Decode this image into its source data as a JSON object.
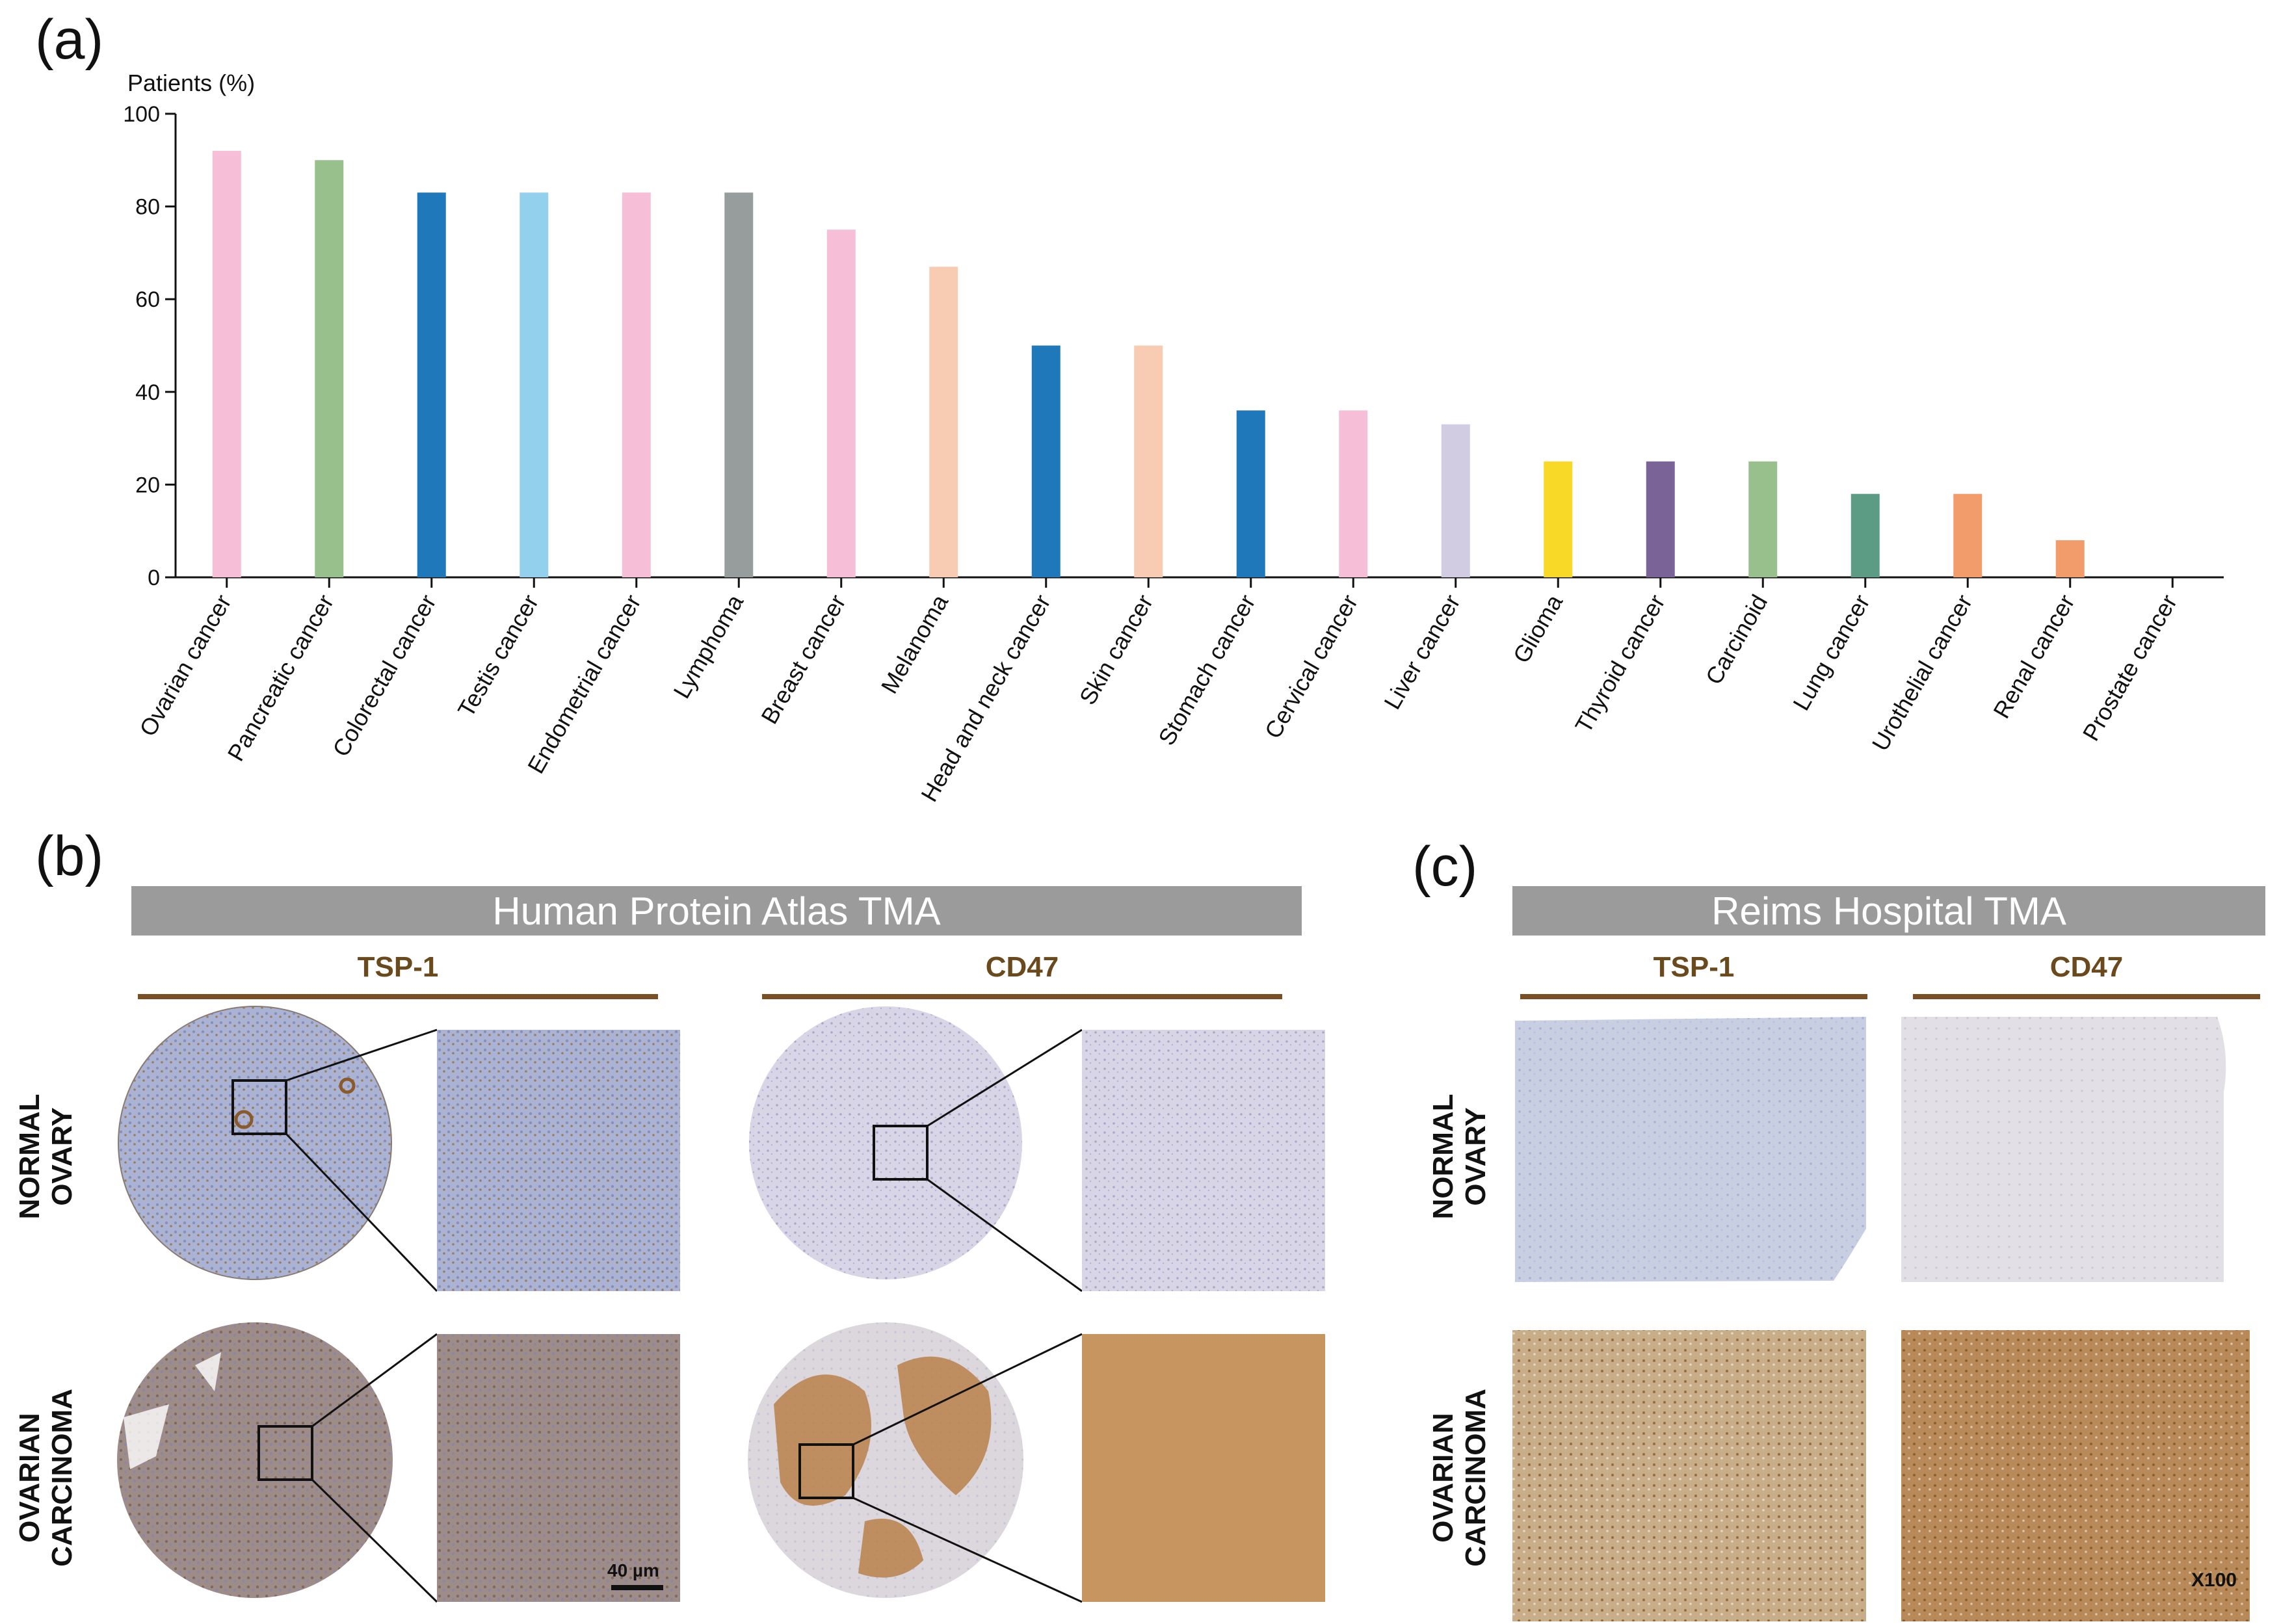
{
  "panels": {
    "a": "(a)",
    "b": "(b)",
    "c": "(c)"
  },
  "chart_data": {
    "type": "bar",
    "title": "",
    "ylabel": "Patients (%)",
    "xlabel": "",
    "ylim": [
      0,
      100
    ],
    "yticks": [
      "0",
      "20",
      "40",
      "60",
      "80",
      "100"
    ],
    "grid": false,
    "categories": [
      "Ovarian cancer",
      "Pancreatic cancer",
      "Colorectal cancer",
      "Testis cancer",
      "Endometrial cancer",
      "Lymphoma",
      "Breast cancer",
      "Melanoma",
      "Head and neck cancer",
      "Skin cancer",
      "Stomach cancer",
      "Cervical cancer",
      "Liver cancer",
      "Glioma",
      "Thyroid cancer",
      "Carcinoid",
      "Lung cancer",
      "Urothelial cancer",
      "Renal cancer",
      "Prostate cancer"
    ],
    "values": [
      92,
      90,
      83,
      83,
      83,
      83,
      75,
      67,
      50,
      50,
      36,
      36,
      33,
      25,
      25,
      25,
      18,
      18,
      8,
      0
    ],
    "colors": [
      "#f6bfd7",
      "#98c08d",
      "#1f78b9",
      "#93d0ee",
      "#f6bfd7",
      "#979d9c",
      "#f6bfd7",
      "#f8cbb3",
      "#1f78b9",
      "#f8cbb3",
      "#1f78b9",
      "#f6bfd7",
      "#d2cce3",
      "#f9d927",
      "#7a6397",
      "#98c08d",
      "#5c9c84",
      "#f39c6b",
      "#f39c6b",
      "#ffffff"
    ]
  },
  "panel_b": {
    "banner": "Human Protein Atlas TMA",
    "stains": [
      "TSP-1",
      "CD47"
    ],
    "rows": [
      "NORMAL\nOVARY",
      "OVARIAN\nCARCINOMA"
    ],
    "scale_bar": "40 µm"
  },
  "panel_c": {
    "banner": "Reims Hospital TMA",
    "stains": [
      "TSP-1",
      "CD47"
    ],
    "rows": [
      "NORMAL\nOVARY",
      "OVARIAN\nCARCINOMA"
    ],
    "magnification": "X100"
  },
  "stain_colors": {
    "normal_blue": "#b7bfdc",
    "normal_pale": "#d9d6e6",
    "carcinoma_brown": "#a88660",
    "cd47_brown": "#b8804a"
  }
}
